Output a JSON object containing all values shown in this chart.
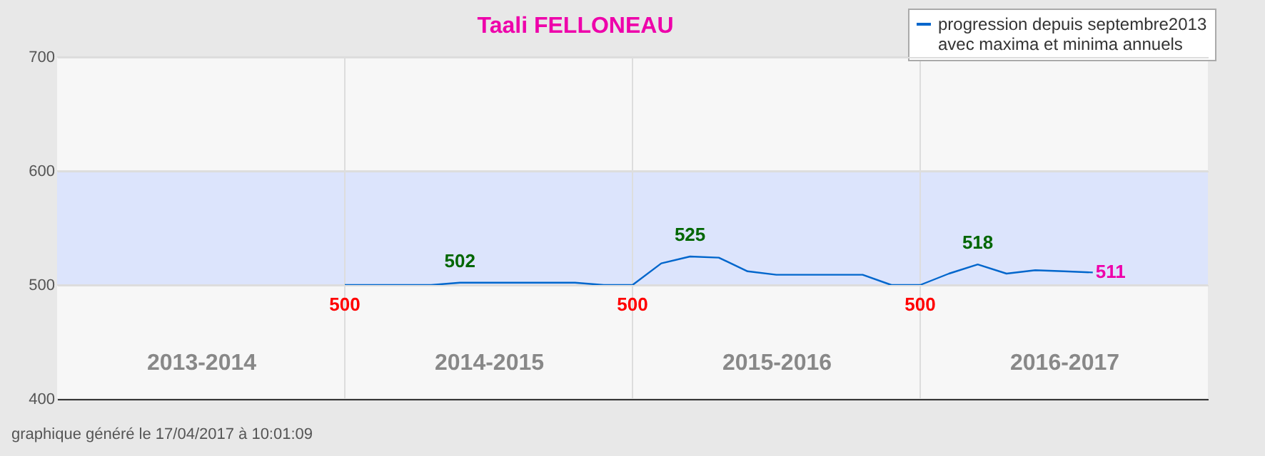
{
  "chart_data": {
    "type": "line",
    "title": "Taali FELLONEAU",
    "annotations": [
      "graphique généré le 17/04/2017 à 10:01:09"
    ],
    "categories": [
      null,
      null,
      null,
      null,
      null,
      "2013-2014",
      null,
      null,
      null,
      null,
      null,
      null,
      null,
      null,
      null,
      "2014-2015",
      null,
      null,
      null,
      null,
      null,
      null,
      null,
      null,
      null,
      "2015-2016",
      null,
      null,
      null,
      null,
      null,
      null,
      null,
      null,
      null,
      "2016-2017",
      null,
      null,
      null,
      null,
      null
    ],
    "series": [
      {
        "name": "progression depuis septembre2013\navec maxima et minima annuels",
        "color": "#0066cc",
        "values": [
          null,
          null,
          null,
          null,
          null,
          null,
          null,
          null,
          null,
          null,
          500,
          500,
          500,
          500,
          502,
          502,
          502,
          502,
          502,
          500,
          500,
          519,
          525,
          524,
          512,
          509,
          509,
          509,
          509,
          500,
          500,
          510,
          518,
          510,
          513,
          512,
          511,
          null,
          null,
          null,
          null
        ],
        "value_labels": [
          null,
          null,
          null,
          null,
          null,
          null,
          null,
          null,
          null,
          null,
          "500",
          null,
          null,
          null,
          "502",
          null,
          null,
          null,
          null,
          null,
          "500",
          null,
          "525",
          null,
          null,
          null,
          null,
          null,
          null,
          null,
          "500",
          null,
          "518",
          null,
          null,
          null,
          "511",
          null,
          null,
          null,
          null
        ]
      }
    ],
    "ylim": [
      400,
      700
    ],
    "yticks": [
      400,
      500,
      600,
      700
    ],
    "bands": [
      {
        "axis": "y",
        "from": 500,
        "to": 600,
        "color": "#dce4fc"
      }
    ],
    "grid": true,
    "legend": "top right",
    "marker": "none",
    "line_style": "solid"
  }
}
